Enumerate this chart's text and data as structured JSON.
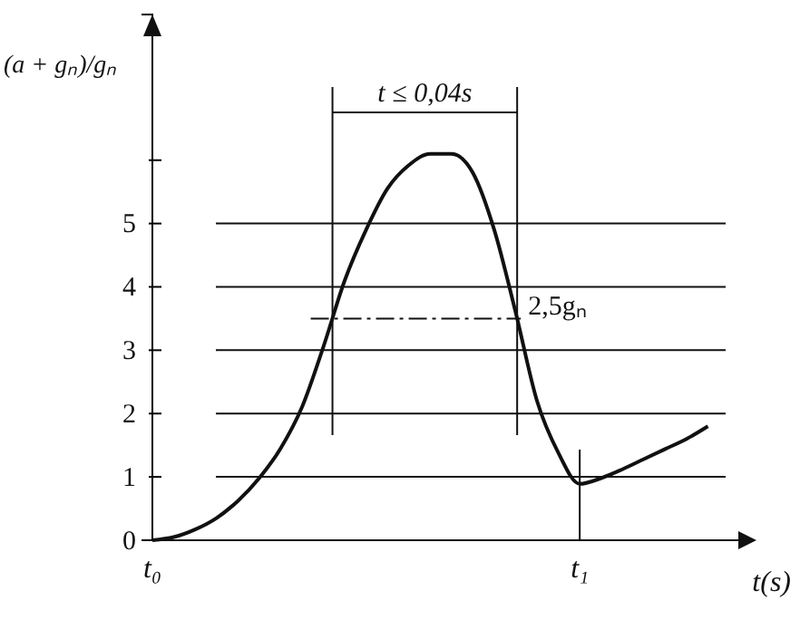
{
  "chart_data": {
    "type": "line",
    "ylabel": "(a + gₙ)/gₙ",
    "xlabel": "t(s)",
    "annotations": [
      "t ≤ 0,04s"
    ],
    "categories": [
      "t₀",
      null,
      null,
      null,
      null,
      null,
      null,
      null,
      null,
      null,
      null,
      null,
      null,
      null,
      null,
      null,
      null,
      null,
      null,
      null,
      "t₁",
      null,
      null,
      null,
      null,
      null,
      null
    ],
    "series": [
      {
        "color": "#111111",
        "values": [
          0,
          0.05,
          0.17,
          0.35,
          0.62,
          0.98,
          1.45,
          2.1,
          3.05,
          4.1,
          4.9,
          5.55,
          5.92,
          6.1,
          6.1,
          5.8,
          4.9,
          3.6,
          2.2,
          1.38,
          0.89,
          0.98,
          1.12,
          1.28,
          1.44,
          1.6,
          1.8
        ]
      }
    ],
    "ylim": [
      0,
      8.3
    ],
    "yticks": [
      0,
      1,
      2,
      3,
      4,
      5,
      {
        "value": 6,
        "label": null
      }
    ],
    "grid": "y",
    "marker": "none",
    "line_style": "solid",
    "ref_lines": [
      {
        "axis": "y",
        "value": 3.5,
        "label": "2,5gₙ",
        "line_style": "dashed"
      }
    ]
  }
}
